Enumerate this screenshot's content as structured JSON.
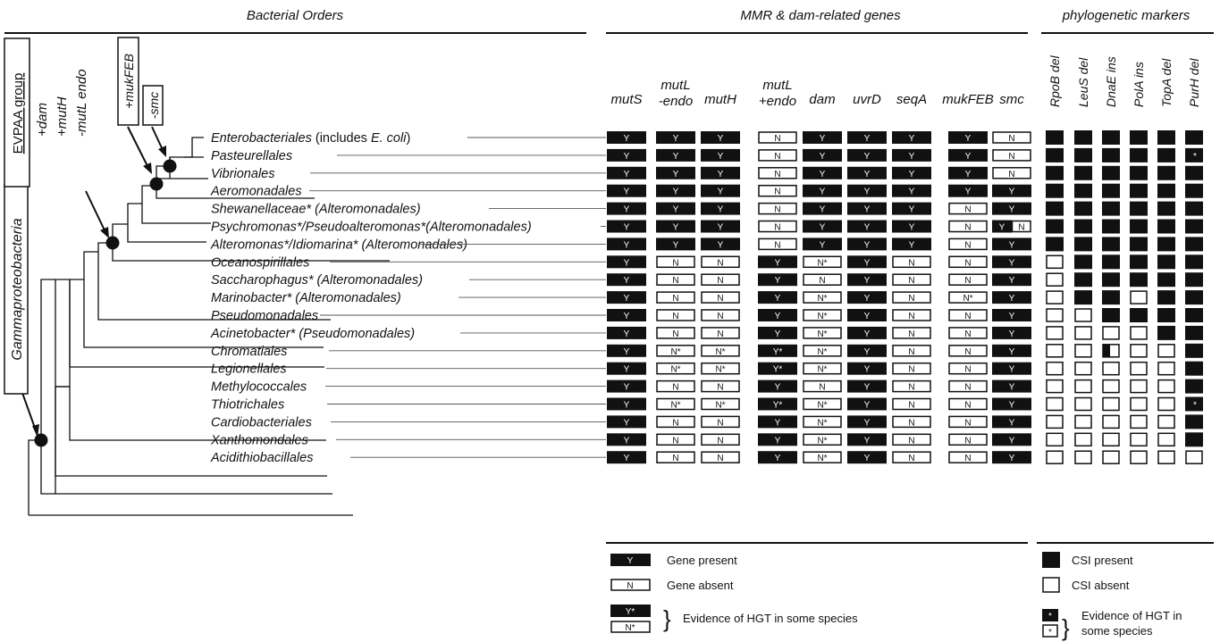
{
  "headers": {
    "orders": "Bacterial Orders",
    "genes": "MMR & dam-related genes",
    "markers": "phylogenetic markers"
  },
  "gene_columns": [
    "mutS",
    "mutL\n-endo",
    "mutH",
    "mutL\n+endo",
    "dam",
    "uvrD",
    "seqA",
    "mukFEB",
    "smc"
  ],
  "marker_columns": [
    "RpoB del",
    "LeuS del",
    "DnaE ins",
    "PolA ins",
    "TopA del",
    "PurH del"
  ],
  "tree_labels": {
    "clade": "Gammaproteobacteria",
    "evpaa_title": "EVPAA group",
    "evpaa_lines": [
      "+dam",
      "+mutH",
      "-mutL endo"
    ],
    "mukfeb": "+mukFEB",
    "smc": "-smc"
  },
  "rows": [
    {
      "name": "Enterobacteriales",
      "suffix": " (includes ",
      "suffix_italic": "E. coli",
      "suffix_end": ")",
      "genes": [
        "Y",
        "Y",
        "Y",
        "N",
        "Y",
        "Y",
        "Y",
        "Y",
        "N"
      ],
      "markers": [
        "F",
        "F",
        "F",
        "F",
        "F",
        "F"
      ]
    },
    {
      "name": "Pasteurellales",
      "genes": [
        "Y",
        "Y",
        "Y",
        "N",
        "Y",
        "Y",
        "Y",
        "Y",
        "N"
      ],
      "markers": [
        "F",
        "F",
        "F",
        "F",
        "F",
        "F*"
      ]
    },
    {
      "name": "Vibrionales",
      "genes": [
        "Y",
        "Y",
        "Y",
        "N",
        "Y",
        "Y",
        "Y",
        "Y",
        "N"
      ],
      "markers": [
        "F",
        "F",
        "F",
        "F",
        "F",
        "F"
      ]
    },
    {
      "name": "Aeromonadales",
      "genes": [
        "Y",
        "Y",
        "Y",
        "N",
        "Y",
        "Y",
        "Y",
        "Y",
        "Y"
      ],
      "markers": [
        "F",
        "F",
        "F",
        "F",
        "F",
        "F"
      ]
    },
    {
      "name": "Shewanellaceae* (Alteromonadales)",
      "genes": [
        "Y",
        "Y",
        "Y",
        "N",
        "Y",
        "Y",
        "Y",
        "N",
        "Y"
      ],
      "markers": [
        "F",
        "F",
        "F",
        "F",
        "F",
        "F"
      ]
    },
    {
      "name": "Psychromonas*/Pseudoalteromonas*(Alteromonadales)",
      "genes": [
        "Y",
        "Y",
        "Y",
        "N",
        "Y",
        "Y",
        "Y",
        "N",
        "YN"
      ],
      "markers": [
        "F",
        "F",
        "F",
        "F",
        "F",
        "F"
      ]
    },
    {
      "name": "Alteromonas*/Idiomarina* (Alteromonadales)",
      "genes": [
        "Y",
        "Y",
        "Y",
        "N",
        "Y",
        "Y",
        "Y",
        "N",
        "Y"
      ],
      "markers": [
        "F",
        "F",
        "F",
        "F",
        "F",
        "F"
      ]
    },
    {
      "name": "Oceanospirillales",
      "genes": [
        "Y",
        "N",
        "N",
        "Y",
        "N*",
        "Y",
        "N",
        "N",
        "Y"
      ],
      "markers": [
        "E",
        "F",
        "F",
        "F",
        "F",
        "F"
      ]
    },
    {
      "name": "Saccharophagus* (Alteromonadales)",
      "genes": [
        "Y",
        "N",
        "N",
        "Y",
        "N",
        "Y",
        "N",
        "N",
        "Y"
      ],
      "markers": [
        "E",
        "F",
        "F",
        "F",
        "F",
        "F"
      ]
    },
    {
      "name": "Marinobacter* (Alteromonadales)",
      "genes": [
        "Y",
        "N",
        "N",
        "Y",
        "N*",
        "Y",
        "N",
        "N*",
        "Y"
      ],
      "markers": [
        "E",
        "F",
        "F",
        "E",
        "F",
        "F"
      ]
    },
    {
      "name": "Pseudomonadales",
      "genes": [
        "Y",
        "N",
        "N",
        "Y",
        "N*",
        "Y",
        "N",
        "N",
        "Y"
      ],
      "markers": [
        "E",
        "E",
        "F",
        "F",
        "F",
        "F"
      ]
    },
    {
      "name": "Acinetobacter* (Pseudomonadales)",
      "genes": [
        "Y",
        "N",
        "N",
        "Y",
        "N*",
        "Y",
        "N",
        "N",
        "Y"
      ],
      "markers": [
        "E",
        "E",
        "E",
        "E",
        "F",
        "F"
      ]
    },
    {
      "name": "Chromatiales",
      "genes": [
        "Y",
        "N*",
        "N*",
        "Y*",
        "N*",
        "Y",
        "N",
        "N",
        "Y"
      ],
      "markers": [
        "E",
        "E",
        "H",
        "E",
        "E",
        "F"
      ]
    },
    {
      "name": "Legionellales",
      "genes": [
        "Y",
        "N*",
        "N*",
        "Y*",
        "N*",
        "Y",
        "N",
        "N",
        "Y"
      ],
      "markers": [
        "E",
        "E",
        "E",
        "E",
        "E",
        "F"
      ]
    },
    {
      "name": "Methylococcales",
      "genes": [
        "Y",
        "N",
        "N",
        "Y",
        "N",
        "Y",
        "N",
        "N",
        "Y"
      ],
      "markers": [
        "E",
        "E",
        "E",
        "E",
        "E",
        "F"
      ]
    },
    {
      "name": "Thiotrichales",
      "genes": [
        "Y",
        "N*",
        "N*",
        "Y*",
        "N*",
        "Y",
        "N",
        "N",
        "Y"
      ],
      "markers": [
        "E",
        "E",
        "E",
        "E",
        "E",
        "F*"
      ]
    },
    {
      "name": "Cardiobacteriales",
      "genes": [
        "Y",
        "N",
        "N",
        "Y",
        "N*",
        "Y",
        "N",
        "N",
        "Y"
      ],
      "markers": [
        "E",
        "E",
        "E",
        "E",
        "E",
        "F"
      ]
    },
    {
      "name": "Xanthomondales",
      "genes": [
        "Y",
        "N",
        "N",
        "Y",
        "N*",
        "Y",
        "N",
        "N",
        "Y"
      ],
      "markers": [
        "E",
        "E",
        "E",
        "E",
        "E",
        "F"
      ]
    },
    {
      "name": "Acidithiobacillales",
      "genes": [
        "Y",
        "N",
        "N",
        "Y",
        "N*",
        "Y",
        "N",
        "N",
        "Y"
      ],
      "markers": [
        "E",
        "E",
        "E",
        "E",
        "E",
        "E"
      ]
    }
  ],
  "legend": {
    "present_cell": "Y",
    "present": "Gene present",
    "absent_cell": "N",
    "absent": "Gene absent",
    "hgt_cells": [
      "Y*",
      "N*"
    ],
    "hgt": "Evidence of HGT in some species",
    "csi_present": "CSI present",
    "csi_absent": "CSI absent",
    "csi_hgt_cell": "*",
    "csi_hgt_line1": "Evidence of HGT in",
    "csi_hgt_line2": "some species"
  }
}
